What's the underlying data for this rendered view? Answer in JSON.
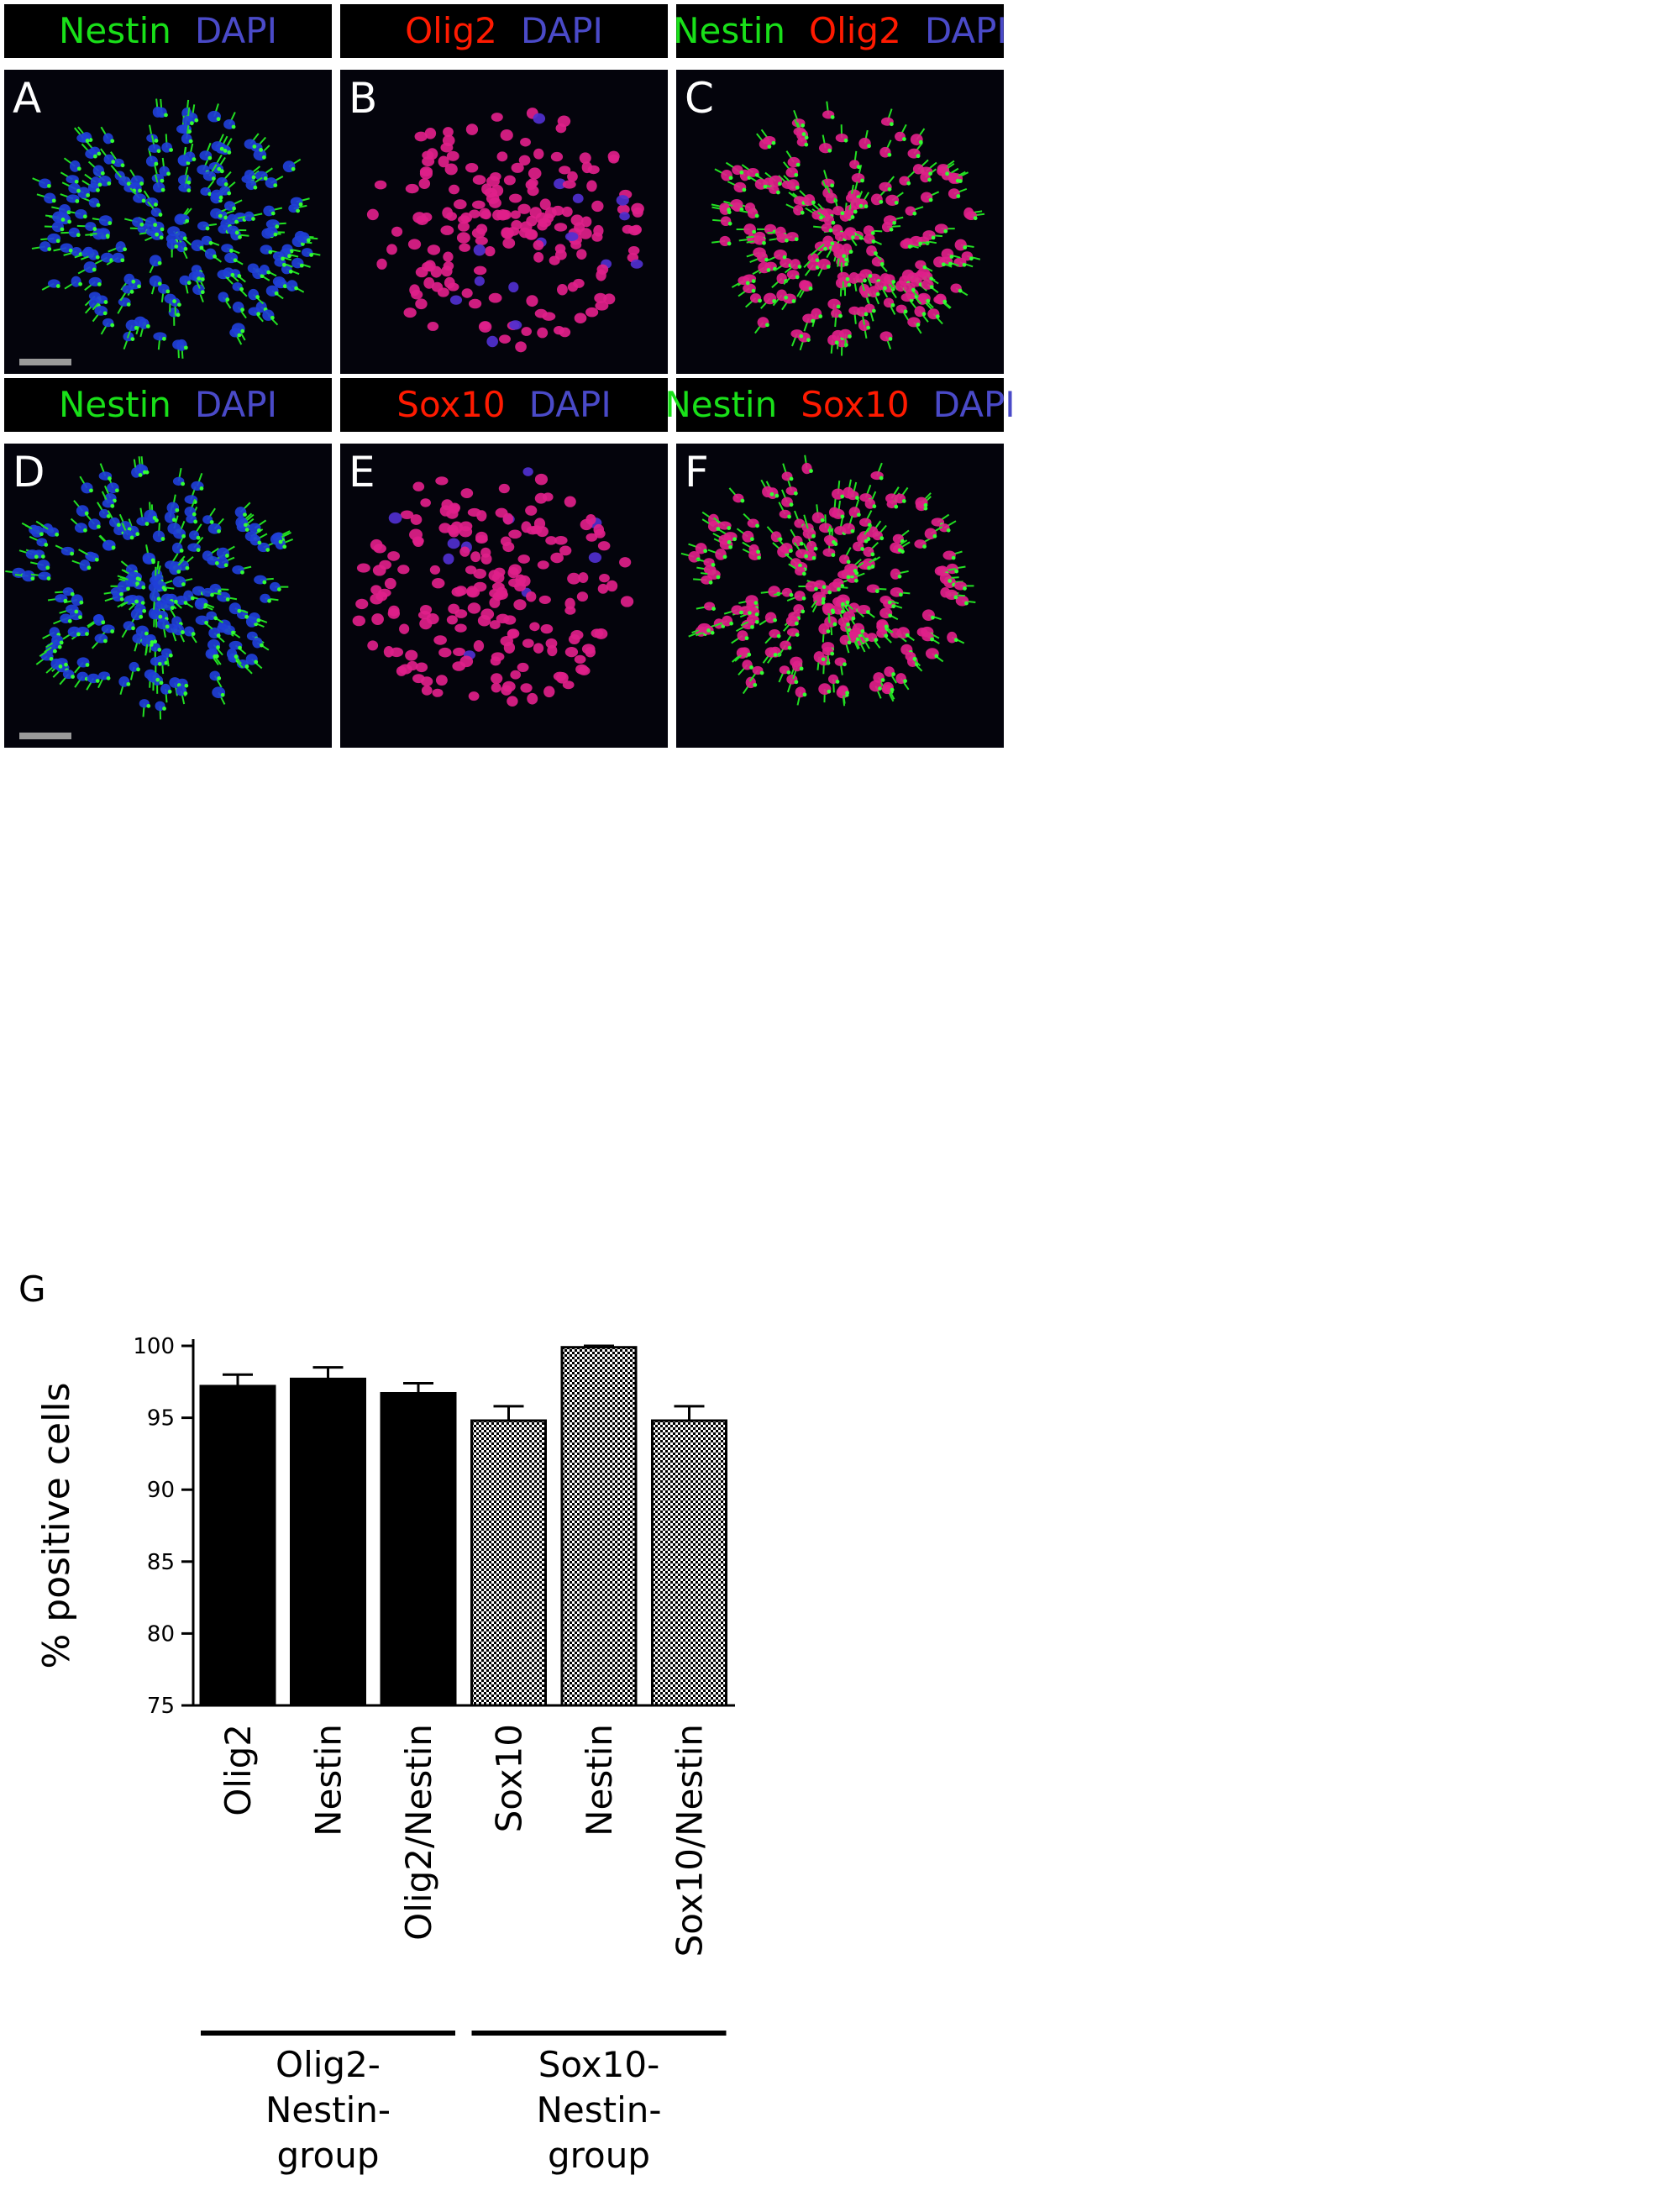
{
  "colors": {
    "green": "#19e019",
    "red": "#ff1a00",
    "blue": "#4a4ac8",
    "white": "#ffffff",
    "black": "#000000"
  },
  "panels": [
    {
      "letter": "A",
      "stains": [
        {
          "text": "Nestin",
          "color": "green"
        },
        {
          "text": "DAPI",
          "color": "blue"
        }
      ],
      "channels": [
        "green",
        "blue"
      ],
      "scalebar": true
    },
    {
      "letter": "B",
      "stains": [
        {
          "text": "Olig2",
          "color": "red"
        },
        {
          "text": "DAPI",
          "color": "blue"
        }
      ],
      "channels": [
        "magenta"
      ],
      "scalebar": false
    },
    {
      "letter": "C",
      "stains": [
        {
          "text": "Nestin",
          "color": "green"
        },
        {
          "text": "Olig2",
          "color": "red"
        },
        {
          "text": "DAPI",
          "color": "blue"
        }
      ],
      "channels": [
        "green",
        "magenta"
      ],
      "scalebar": false
    },
    {
      "letter": "D",
      "stains": [
        {
          "text": "Nestin",
          "color": "green"
        },
        {
          "text": "DAPI",
          "color": "blue"
        }
      ],
      "channels": [
        "green",
        "blue"
      ],
      "scalebar": true
    },
    {
      "letter": "E",
      "stains": [
        {
          "text": "Sox10",
          "color": "red"
        },
        {
          "text": "DAPI",
          "color": "blue"
        }
      ],
      "channels": [
        "magenta"
      ],
      "scalebar": false
    },
    {
      "letter": "F",
      "stains": [
        {
          "text": "Nestin",
          "color": "green"
        },
        {
          "text": "Sox10",
          "color": "red"
        },
        {
          "text": "DAPI",
          "color": "blue"
        }
      ],
      "channels": [
        "green",
        "magenta"
      ],
      "scalebar": false
    }
  ],
  "figure_g": {
    "letter": "G"
  },
  "chart_data": {
    "type": "bar",
    "ylabel": "% positive cells",
    "ylim": [
      75,
      100
    ],
    "yticks": [
      75,
      80,
      85,
      90,
      95,
      100
    ],
    "categories": [
      "Olig2",
      "Nestin",
      "Olig2/Nestin",
      "Sox10",
      "Nestin",
      "Sox10/Nestin"
    ],
    "values": [
      97.2,
      97.7,
      96.7,
      94.8,
      99.9,
      94.8
    ],
    "errors": [
      0.8,
      0.8,
      0.7,
      1.0,
      0.1,
      1.0
    ],
    "fills": [
      "solid",
      "solid",
      "solid",
      "checker",
      "checker",
      "checker"
    ],
    "groups": [
      {
        "label_lines": [
          "Olig2-",
          "Nestin-",
          "group"
        ],
        "bars": [
          0,
          1,
          2
        ]
      },
      {
        "label_lines": [
          "Sox10-",
          "Nestin-",
          "group"
        ],
        "bars": [
          3,
          4,
          5
        ]
      }
    ]
  }
}
